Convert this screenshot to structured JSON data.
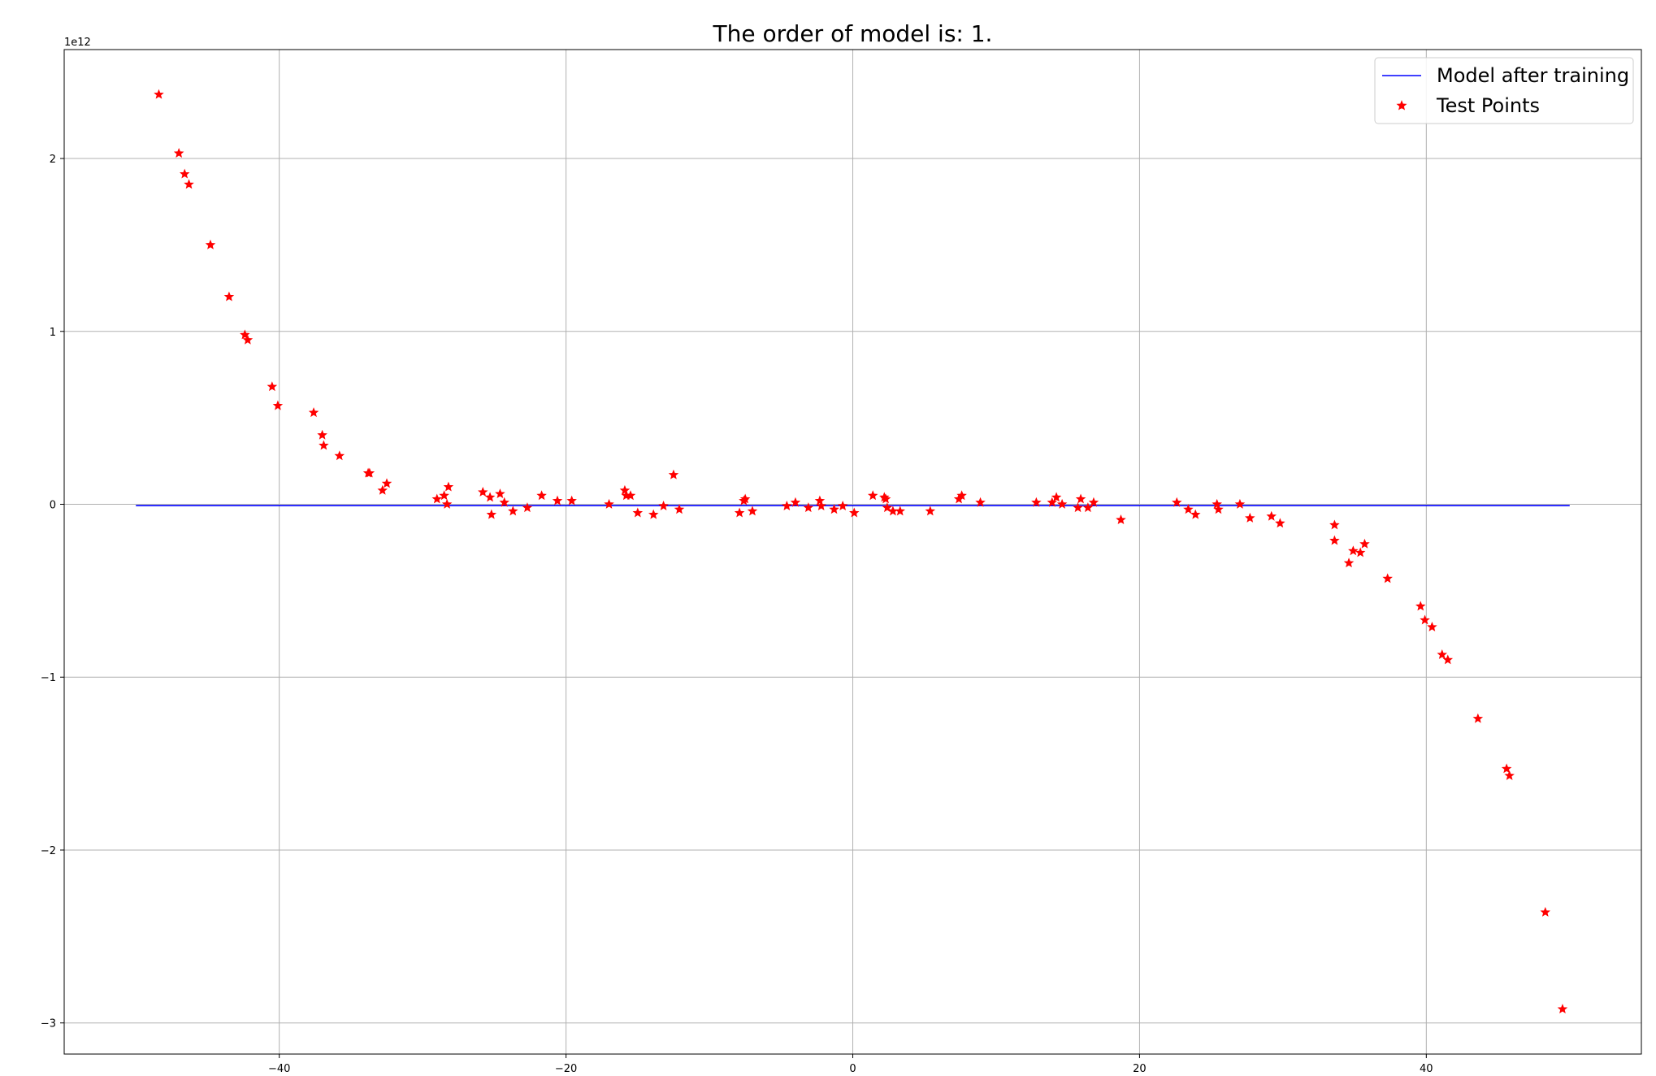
{
  "chart_data": {
    "type": "line",
    "title": "The order of model is: 1.",
    "y_offset_label": "1e12",
    "xlim": [
      -55,
      55
    ],
    "ylim": [
      -3.18,
      2.63
    ],
    "x_ticks": [
      -40,
      -20,
      0,
      20,
      40
    ],
    "x_tick_labels": [
      "−40",
      "−20",
      "0",
      "20",
      "40"
    ],
    "y_ticks": [
      -3,
      -2,
      -1,
      0,
      1,
      2
    ],
    "y_tick_labels": [
      "−3",
      "−2",
      "−1",
      "0",
      "1",
      "2"
    ],
    "grid": true,
    "legend_position": "top-right",
    "legend": [
      "Model after training",
      "Test Points"
    ],
    "colors": {
      "model": "#0000ff",
      "points": "#ff0000",
      "grid": "#b0b0b0"
    },
    "series": [
      {
        "name": "Model after training",
        "type": "line",
        "x": [
          -50,
          50
        ],
        "y": [
          -0.008,
          -0.008
        ]
      },
      {
        "name": "Test Points",
        "type": "scatter",
        "marker": "star",
        "x": [
          -48.4,
          -47,
          -46.6,
          -46.3,
          -44.8,
          -43.5,
          -42.4,
          -42.2,
          -40.5,
          -40.1,
          -37.6,
          -37,
          -36.9,
          -35.8,
          -33.8,
          -33.7,
          -32.8,
          -32.5,
          -29,
          -28.5,
          -28.3,
          -28.2,
          -25.8,
          -25.3,
          -25.2,
          -24.6,
          -24.3,
          -23.7,
          -22.7,
          -21.7,
          -20.6,
          -19.6,
          -17,
          -15.9,
          -15.8,
          -15.5,
          -15,
          -13.9,
          -13.2,
          -12.5,
          -12.1,
          -7.9,
          -7.6,
          -7.5,
          -7,
          -4.6,
          -4,
          -3.1,
          -2.3,
          -2.2,
          -1.3,
          -0.7,
          0.1,
          1.4,
          2.2,
          2.3,
          2.4,
          2.8,
          3.3,
          5.4,
          7.4,
          7.6,
          8.9,
          12.8,
          13.9,
          14.2,
          14.6,
          15.7,
          15.9,
          16.4,
          16.8,
          18.7,
          22.6,
          23.4,
          23.9,
          25.4,
          25.5,
          27,
          27.7,
          29.2,
          29.8,
          33.6,
          33.6,
          34.6,
          34.9,
          35.4,
          35.7,
          37.3,
          39.6,
          39.9,
          40.4,
          41.1,
          41.5,
          43.6,
          45.6,
          45.8,
          48.3,
          49.5
        ],
        "y": [
          2.37,
          2.03,
          1.91,
          1.85,
          1.5,
          1.2,
          0.98,
          0.95,
          0.68,
          0.57,
          0.53,
          0.4,
          0.34,
          0.28,
          0.18,
          0.18,
          0.08,
          0.12,
          0.03,
          0.05,
          0,
          0.1,
          0.07,
          0.04,
          -0.06,
          0.06,
          0.01,
          -0.04,
          -0.02,
          0.05,
          0.02,
          0.02,
          0,
          0.08,
          0.05,
          0.05,
          -0.05,
          -0.06,
          -0.01,
          0.17,
          -0.03,
          -0.05,
          0.02,
          0.03,
          -0.04,
          -0.01,
          0.01,
          -0.02,
          0.02,
          -0.01,
          -0.03,
          -0.01,
          -0.05,
          0.05,
          0.04,
          0.03,
          -0.02,
          -0.04,
          -0.04,
          -0.04,
          0.03,
          0.05,
          0.01,
          0.01,
          0.01,
          0.04,
          0,
          -0.02,
          0.03,
          -0.02,
          0.01,
          -0.09,
          0.01,
          -0.03,
          -0.06,
          0,
          -0.03,
          0,
          -0.08,
          -0.07,
          -0.11,
          -0.12,
          -0.21,
          -0.34,
          -0.27,
          -0.28,
          -0.23,
          -0.43,
          -0.59,
          -0.67,
          -0.71,
          -0.87,
          -0.9,
          -1.24,
          -1.53,
          -1.57,
          -2.36,
          -2.92
        ]
      }
    ]
  }
}
